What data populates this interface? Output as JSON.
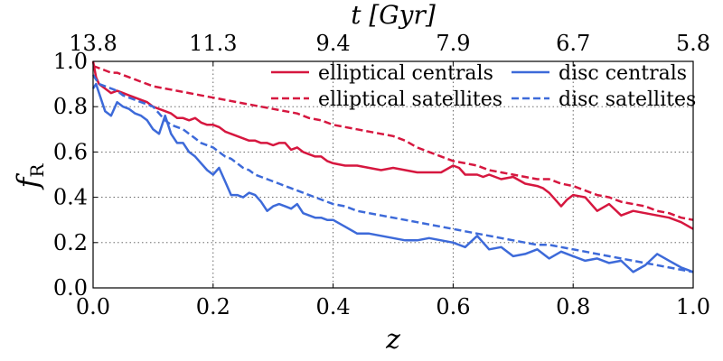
{
  "chart_data": {
    "type": "line",
    "xlabel": "z",
    "ylabel": "f",
    "ylabel_sub": "R",
    "top_xlabel": "t [Gyr]",
    "xlim": [
      0.0,
      1.0
    ],
    "ylim": [
      0.0,
      1.0
    ],
    "grid": true,
    "legend_position": "top-right",
    "x_ticks": [
      "0.0",
      "0.2",
      "0.4",
      "0.6",
      "0.8",
      "1.0"
    ],
    "y_ticks": [
      "0.0",
      "0.2",
      "0.4",
      "0.6",
      "0.8",
      "1.0"
    ],
    "top_ticks": [
      {
        "label": "13.8",
        "z": 0.0
      },
      {
        "label": "11.3",
        "z": 0.2
      },
      {
        "label": "9.4",
        "z": 0.4
      },
      {
        "label": "7.9",
        "z": 0.6
      },
      {
        "label": "6.7",
        "z": 0.8
      },
      {
        "label": "5.8",
        "z": 1.0
      }
    ],
    "series": [
      {
        "name": "elliptical centrals",
        "color": "#d6173f",
        "dash": "solid",
        "x": [
          0.0,
          0.005,
          0.01,
          0.02,
          0.03,
          0.04,
          0.05,
          0.06,
          0.07,
          0.08,
          0.09,
          0.1,
          0.11,
          0.12,
          0.13,
          0.14,
          0.15,
          0.16,
          0.17,
          0.18,
          0.19,
          0.2,
          0.21,
          0.22,
          0.23,
          0.24,
          0.25,
          0.26,
          0.27,
          0.28,
          0.29,
          0.3,
          0.31,
          0.32,
          0.33,
          0.34,
          0.35,
          0.36,
          0.37,
          0.38,
          0.39,
          0.4,
          0.42,
          0.44,
          0.46,
          0.48,
          0.5,
          0.52,
          0.54,
          0.56,
          0.58,
          0.6,
          0.61,
          0.62,
          0.64,
          0.65,
          0.66,
          0.68,
          0.7,
          0.72,
          0.74,
          0.75,
          0.76,
          0.77,
          0.78,
          0.79,
          0.8,
          0.82,
          0.84,
          0.86,
          0.88,
          0.9,
          0.92,
          0.94,
          0.96,
          0.98,
          1.0
        ],
        "y": [
          1.0,
          0.93,
          0.9,
          0.88,
          0.86,
          0.87,
          0.86,
          0.85,
          0.84,
          0.83,
          0.82,
          0.8,
          0.79,
          0.78,
          0.77,
          0.75,
          0.75,
          0.74,
          0.75,
          0.73,
          0.72,
          0.72,
          0.71,
          0.69,
          0.68,
          0.67,
          0.66,
          0.65,
          0.65,
          0.64,
          0.64,
          0.63,
          0.64,
          0.64,
          0.61,
          0.62,
          0.6,
          0.59,
          0.58,
          0.58,
          0.56,
          0.55,
          0.54,
          0.54,
          0.53,
          0.52,
          0.53,
          0.52,
          0.51,
          0.51,
          0.51,
          0.54,
          0.53,
          0.5,
          0.5,
          0.49,
          0.5,
          0.48,
          0.49,
          0.46,
          0.45,
          0.44,
          0.42,
          0.39,
          0.36,
          0.39,
          0.41,
          0.4,
          0.34,
          0.37,
          0.32,
          0.34,
          0.33,
          0.32,
          0.31,
          0.29,
          0.26
        ]
      },
      {
        "name": "elliptical satellites",
        "color": "#d6173f",
        "dash": "dashed",
        "x": [
          0.0,
          0.01,
          0.02,
          0.03,
          0.04,
          0.05,
          0.06,
          0.07,
          0.08,
          0.09,
          0.1,
          0.12,
          0.14,
          0.16,
          0.18,
          0.2,
          0.22,
          0.24,
          0.26,
          0.28,
          0.3,
          0.32,
          0.34,
          0.36,
          0.38,
          0.4,
          0.42,
          0.44,
          0.46,
          0.48,
          0.5,
          0.52,
          0.54,
          0.56,
          0.58,
          0.6,
          0.62,
          0.64,
          0.66,
          0.68,
          0.7,
          0.72,
          0.74,
          0.76,
          0.78,
          0.8,
          0.82,
          0.84,
          0.86,
          0.88,
          0.9,
          0.92,
          0.94,
          0.96,
          0.98,
          1.0
        ],
        "y": [
          0.98,
          0.97,
          0.96,
          0.95,
          0.95,
          0.94,
          0.93,
          0.92,
          0.91,
          0.9,
          0.89,
          0.88,
          0.87,
          0.86,
          0.85,
          0.84,
          0.83,
          0.82,
          0.81,
          0.8,
          0.79,
          0.78,
          0.77,
          0.75,
          0.74,
          0.72,
          0.71,
          0.7,
          0.69,
          0.68,
          0.67,
          0.65,
          0.62,
          0.6,
          0.58,
          0.56,
          0.55,
          0.54,
          0.52,
          0.51,
          0.5,
          0.49,
          0.48,
          0.48,
          0.46,
          0.45,
          0.43,
          0.41,
          0.4,
          0.38,
          0.37,
          0.36,
          0.34,
          0.33,
          0.31,
          0.3
        ]
      },
      {
        "name": "disc centrals",
        "color": "#3d6ad9",
        "dash": "solid",
        "x": [
          0.0,
          0.005,
          0.01,
          0.02,
          0.03,
          0.04,
          0.05,
          0.06,
          0.07,
          0.08,
          0.09,
          0.1,
          0.11,
          0.12,
          0.13,
          0.14,
          0.15,
          0.16,
          0.17,
          0.18,
          0.19,
          0.2,
          0.21,
          0.22,
          0.23,
          0.24,
          0.25,
          0.26,
          0.27,
          0.28,
          0.29,
          0.3,
          0.31,
          0.32,
          0.33,
          0.34,
          0.35,
          0.36,
          0.37,
          0.38,
          0.39,
          0.4,
          0.42,
          0.44,
          0.46,
          0.48,
          0.5,
          0.52,
          0.54,
          0.56,
          0.58,
          0.6,
          0.62,
          0.64,
          0.66,
          0.68,
          0.7,
          0.72,
          0.74,
          0.76,
          0.78,
          0.8,
          0.82,
          0.84,
          0.86,
          0.88,
          0.9,
          0.92,
          0.94,
          0.96,
          0.98,
          1.0
        ],
        "y": [
          0.88,
          0.9,
          0.86,
          0.78,
          0.76,
          0.82,
          0.8,
          0.79,
          0.77,
          0.76,
          0.74,
          0.7,
          0.68,
          0.76,
          0.68,
          0.64,
          0.64,
          0.6,
          0.58,
          0.55,
          0.52,
          0.5,
          0.53,
          0.47,
          0.41,
          0.41,
          0.4,
          0.42,
          0.41,
          0.38,
          0.34,
          0.36,
          0.37,
          0.36,
          0.35,
          0.37,
          0.33,
          0.32,
          0.31,
          0.31,
          0.3,
          0.3,
          0.27,
          0.24,
          0.24,
          0.23,
          0.22,
          0.21,
          0.21,
          0.22,
          0.21,
          0.2,
          0.18,
          0.23,
          0.17,
          0.18,
          0.14,
          0.15,
          0.17,
          0.13,
          0.16,
          0.14,
          0.12,
          0.13,
          0.11,
          0.12,
          0.07,
          0.1,
          0.15,
          0.12,
          0.09,
          0.07
        ]
      },
      {
        "name": "disc satellites",
        "color": "#3d6ad9",
        "dash": "dashed",
        "x": [
          0.0,
          0.01,
          0.02,
          0.03,
          0.04,
          0.05,
          0.06,
          0.07,
          0.08,
          0.09,
          0.1,
          0.11,
          0.12,
          0.13,
          0.14,
          0.15,
          0.16,
          0.17,
          0.18,
          0.19,
          0.2,
          0.21,
          0.22,
          0.23,
          0.24,
          0.25,
          0.26,
          0.27,
          0.28,
          0.29,
          0.3,
          0.31,
          0.32,
          0.33,
          0.34,
          0.35,
          0.36,
          0.37,
          0.38,
          0.39,
          0.4,
          0.42,
          0.44,
          0.46,
          0.48,
          0.5,
          0.52,
          0.54,
          0.56,
          0.58,
          0.6,
          0.62,
          0.64,
          0.66,
          0.68,
          0.7,
          0.72,
          0.74,
          0.76,
          0.78,
          0.8,
          0.82,
          0.84,
          0.86,
          0.88,
          0.9,
          0.92,
          0.94,
          0.96,
          0.98,
          1.0
        ],
        "y": [
          0.94,
          0.9,
          0.89,
          0.88,
          0.87,
          0.85,
          0.84,
          0.83,
          0.82,
          0.81,
          0.8,
          0.77,
          0.74,
          0.72,
          0.71,
          0.7,
          0.68,
          0.66,
          0.64,
          0.63,
          0.62,
          0.6,
          0.58,
          0.57,
          0.55,
          0.53,
          0.52,
          0.5,
          0.49,
          0.48,
          0.47,
          0.46,
          0.45,
          0.44,
          0.43,
          0.42,
          0.41,
          0.4,
          0.39,
          0.38,
          0.37,
          0.36,
          0.34,
          0.33,
          0.32,
          0.31,
          0.3,
          0.29,
          0.28,
          0.27,
          0.26,
          0.25,
          0.24,
          0.23,
          0.22,
          0.21,
          0.2,
          0.19,
          0.19,
          0.18,
          0.17,
          0.16,
          0.15,
          0.14,
          0.13,
          0.12,
          0.11,
          0.1,
          0.09,
          0.08,
          0.07
        ]
      }
    ]
  }
}
